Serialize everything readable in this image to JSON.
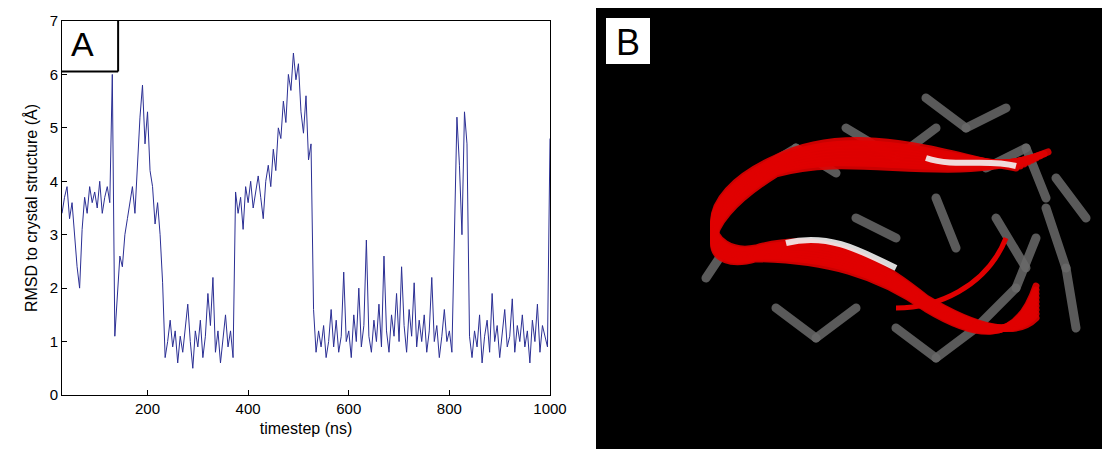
{
  "chart_data": {
    "type": "line",
    "x_label": "timestep (ns)",
    "y_label": "RMSD to crystal structure (Å)",
    "annotations": [
      "A"
    ],
    "xlim": [
      30,
      1000
    ],
    "xticks": [
      200,
      400,
      600,
      800,
      1000
    ],
    "ylim": [
      0,
      7
    ],
    "yticks": [
      0,
      1,
      2,
      3,
      4,
      5,
      6,
      7
    ],
    "grid": false,
    "color": "#2b2f94",
    "x": [
      30,
      35,
      40,
      45,
      50,
      55,
      60,
      65,
      70,
      75,
      80,
      85,
      90,
      95,
      100,
      105,
      110,
      115,
      120,
      125,
      130,
      135,
      140,
      145,
      150,
      155,
      160,
      165,
      170,
      175,
      180,
      185,
      190,
      195,
      200,
      205,
      210,
      215,
      220,
      225,
      230,
      235,
      240,
      245,
      250,
      255,
      260,
      265,
      270,
      275,
      280,
      285,
      290,
      295,
      300,
      305,
      310,
      315,
      320,
      325,
      330,
      335,
      340,
      345,
      350,
      355,
      360,
      365,
      370,
      375,
      380,
      385,
      390,
      395,
      400,
      405,
      410,
      415,
      420,
      425,
      430,
      435,
      440,
      445,
      450,
      455,
      460,
      465,
      470,
      475,
      480,
      485,
      490,
      495,
      500,
      505,
      510,
      515,
      520,
      525,
      530,
      535,
      540,
      545,
      550,
      555,
      560,
      565,
      570,
      575,
      580,
      585,
      590,
      595,
      600,
      605,
      610,
      615,
      620,
      625,
      630,
      635,
      640,
      645,
      650,
      655,
      660,
      665,
      670,
      675,
      680,
      685,
      690,
      695,
      700,
      705,
      710,
      715,
      720,
      725,
      730,
      735,
      740,
      745,
      750,
      755,
      760,
      765,
      770,
      775,
      780,
      785,
      790,
      795,
      800,
      805,
      810,
      815,
      820,
      825,
      830,
      835,
      840,
      845,
      850,
      855,
      860,
      865,
      870,
      875,
      880,
      885,
      890,
      895,
      900,
      905,
      910,
      915,
      920,
      925,
      930,
      935,
      940,
      945,
      950,
      955,
      960,
      965,
      970,
      975,
      980,
      985,
      990,
      995,
      1000
    ],
    "values": [
      3.4,
      3.7,
      3.9,
      3.3,
      3.6,
      3.0,
      2.4,
      2.0,
      3.1,
      3.7,
      3.4,
      3.9,
      3.6,
      3.8,
      3.5,
      4.0,
      3.4,
      3.7,
      3.9,
      3.6,
      6.0,
      1.1,
      1.8,
      2.6,
      2.4,
      3.0,
      3.3,
      3.6,
      3.9,
      3.4,
      4.4,
      5.2,
      5.8,
      4.7,
      5.3,
      4.2,
      3.9,
      3.2,
      3.6,
      3.0,
      2.1,
      0.7,
      1.0,
      1.4,
      0.9,
      1.2,
      0.6,
      1.1,
      0.8,
      1.3,
      1.7,
      1.0,
      0.5,
      1.2,
      0.9,
      1.4,
      0.7,
      1.1,
      1.9,
      1.3,
      2.2,
      0.8,
      1.2,
      0.6,
      1.0,
      1.5,
      0.9,
      1.2,
      0.7,
      3.8,
      3.4,
      3.7,
      3.1,
      3.9,
      3.6,
      4.0,
      3.5,
      3.8,
      4.1,
      3.7,
      3.3,
      4.0,
      4.3,
      3.9,
      4.6,
      4.2,
      5.0,
      4.8,
      5.5,
      5.1,
      6.0,
      5.7,
      6.4,
      5.9,
      6.2,
      5.3,
      4.9,
      5.6,
      4.4,
      4.7,
      1.6,
      0.8,
      1.2,
      0.9,
      1.3,
      0.7,
      1.0,
      1.6,
      0.9,
      1.4,
      0.8,
      1.1,
      2.3,
      1.0,
      1.2,
      0.7,
      1.5,
      1.0,
      2.0,
      0.9,
      1.3,
      2.9,
      1.1,
      0.8,
      1.4,
      1.0,
      1.7,
      0.9,
      2.6,
      1.2,
      0.8,
      1.5,
      1.1,
      1.9,
      1.0,
      2.4,
      1.3,
      0.8,
      1.6,
      1.1,
      2.1,
      0.9,
      1.4,
      1.0,
      1.5,
      0.8,
      1.2,
      2.2,
      1.0,
      1.3,
      0.7,
      1.1,
      1.6,
      1.0,
      1.2,
      0.8,
      3.2,
      5.2,
      4.3,
      3.0,
      5.3,
      4.7,
      1.1,
      0.7,
      1.2,
      0.9,
      1.5,
      0.6,
      1.1,
      1.4,
      0.8,
      1.9,
      1.0,
      1.3,
      0.7,
      1.2,
      1.6,
      0.9,
      1.1,
      1.8,
      0.8,
      1.3,
      1.0,
      1.5,
      0.9,
      1.2,
      0.6,
      1.4,
      1.0,
      1.7,
      0.8,
      1.3,
      1.1,
      0.9,
      4.8
    ]
  },
  "image": {
    "label": "B"
  }
}
